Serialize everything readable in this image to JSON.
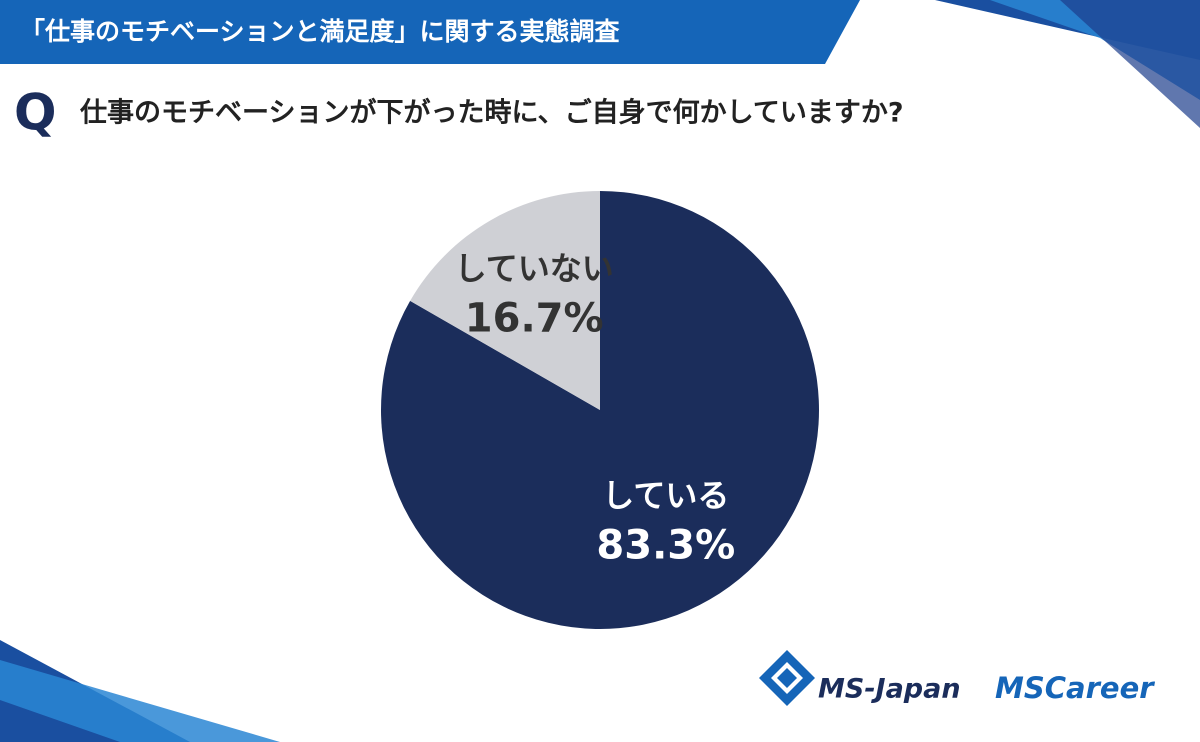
{
  "chart_data": {
    "type": "pie",
    "title": "「仕事のモチベーションと満足度」に関する実態調査",
    "question_label": "Q",
    "subtitle": "仕事のモチベーションが下がった時に、ご自身で何かしていますか?",
    "categories": [
      "している",
      "していない"
    ],
    "values": [
      83.3,
      16.7
    ],
    "value_labels": [
      "83.3%",
      "16.7%"
    ],
    "colors": [
      "#1b2d5b",
      "#cfd0d5"
    ],
    "label_colors": [
      "#ffffff",
      "#333333"
    ]
  },
  "logos": [
    "MS-Japan",
    "MSCareer"
  ]
}
